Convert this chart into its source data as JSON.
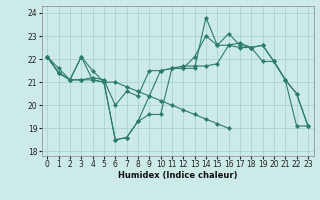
{
  "xlabel": "Humidex (Indice chaleur)",
  "bg_color": "#cceae8",
  "grid_color": "#aad4d0",
  "line_color": "#2d7a6e",
  "xlim": [
    -0.5,
    23.5
  ],
  "ylim": [
    17.8,
    24.3
  ],
  "yticks": [
    18,
    19,
    20,
    21,
    22,
    23,
    24
  ],
  "xticks": [
    0,
    1,
    2,
    3,
    4,
    5,
    6,
    7,
    8,
    9,
    10,
    11,
    12,
    13,
    14,
    15,
    16,
    17,
    18,
    19,
    20,
    21,
    22,
    23
  ],
  "series": [
    [
      22.1,
      21.4,
      21.1,
      22.1,
      21.1,
      21.0,
      18.5,
      18.6,
      19.3,
      20.4,
      21.5,
      21.6,
      21.6,
      21.6,
      23.8,
      22.6,
      23.1,
      22.6,
      22.5,
      22.6,
      21.9,
      21.1,
      20.5,
      19.1
    ],
    [
      22.1,
      21.6,
      21.1,
      21.1,
      21.2,
      21.1,
      20.0,
      20.6,
      20.4,
      21.5,
      21.5,
      21.6,
      21.7,
      21.7,
      21.7,
      21.8,
      22.6,
      22.5,
      22.5,
      21.9,
      21.9,
      21.1,
      19.1,
      19.1
    ],
    [
      22.1,
      21.4,
      21.1,
      22.1,
      21.5,
      21.0,
      18.5,
      18.6,
      19.3,
      19.6,
      19.6,
      21.6,
      21.6,
      22.1,
      23.0,
      22.6,
      22.6,
      22.7,
      22.5,
      22.6,
      21.9,
      21.1,
      20.5,
      19.1
    ],
    [
      22.1,
      21.4,
      21.1,
      21.1,
      21.1,
      21.0,
      21.0,
      20.8,
      20.6,
      20.4,
      20.2,
      20.0,
      19.8,
      19.6,
      19.4,
      19.2,
      19.0,
      null,
      null,
      null,
      null,
      null,
      null,
      null
    ]
  ]
}
